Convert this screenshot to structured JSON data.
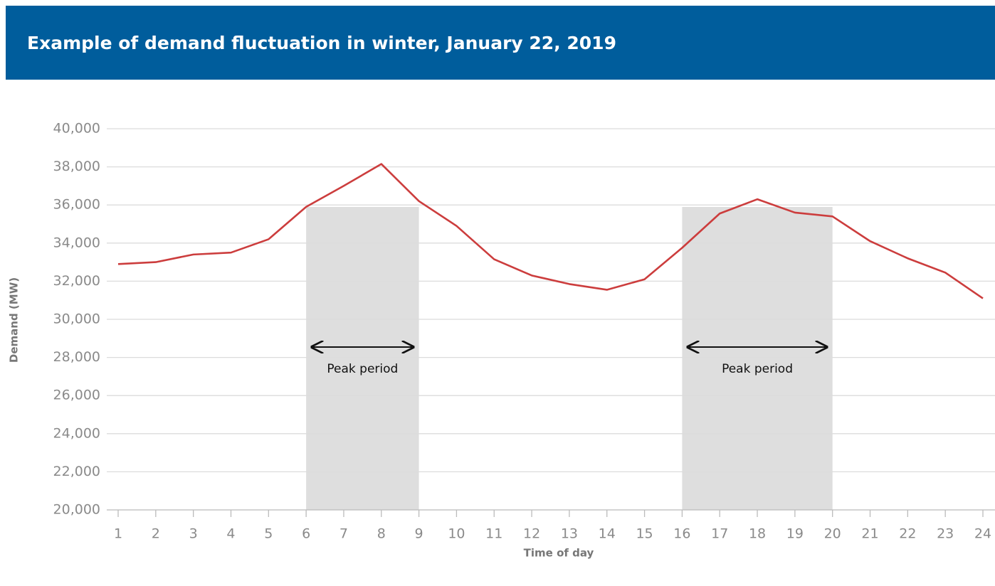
{
  "chart_data": {
    "type": "line",
    "title": "Example of demand fluctuation in winter, January 22, 2019",
    "x_label": "Time of day",
    "y_label": "Demand (MW)",
    "x": [
      1,
      2,
      3,
      4,
      5,
      6,
      7,
      8,
      9,
      10,
      11,
      12,
      13,
      14,
      15,
      16,
      17,
      18,
      19,
      20,
      21,
      22,
      23,
      24
    ],
    "series": [
      {
        "name": "Demand",
        "color": "#cc3d3d",
        "values": [
          32900,
          33000,
          33400,
          33500,
          34200,
          35900,
          37000,
          38150,
          36200,
          34900,
          33150,
          32300,
          31850,
          31550,
          32100,
          33750,
          35550,
          36300,
          35600,
          35400,
          34100,
          33200,
          32450,
          31100
        ]
      }
    ],
    "xlim": [
      1,
      24
    ],
    "xticks": [
      1,
      2,
      3,
      4,
      5,
      6,
      7,
      8,
      9,
      10,
      11,
      12,
      13,
      14,
      15,
      16,
      17,
      18,
      19,
      20,
      21,
      22,
      23,
      24
    ],
    "ylim": [
      20000,
      40000
    ],
    "yticks": [
      {
        "value": 20000,
        "label": "20,000"
      },
      {
        "value": 22000,
        "label": "22,000"
      },
      {
        "value": 24000,
        "label": "24,000"
      },
      {
        "value": 26000,
        "label": "26,000"
      },
      {
        "value": 28000,
        "label": "28,000"
      },
      {
        "value": 30000,
        "label": "30,000"
      },
      {
        "value": 32000,
        "label": "32,000"
      },
      {
        "value": 34000,
        "label": "34,000"
      },
      {
        "value": 36000,
        "label": "36,000"
      },
      {
        "value": 38000,
        "label": "38,000"
      },
      {
        "value": 40000,
        "label": "40,000"
      }
    ],
    "grid": true,
    "peak_periods": [
      {
        "label": "Peak period",
        "x": [
          6,
          9
        ]
      },
      {
        "label": "Peak period",
        "x": [
          16,
          20
        ]
      }
    ]
  }
}
